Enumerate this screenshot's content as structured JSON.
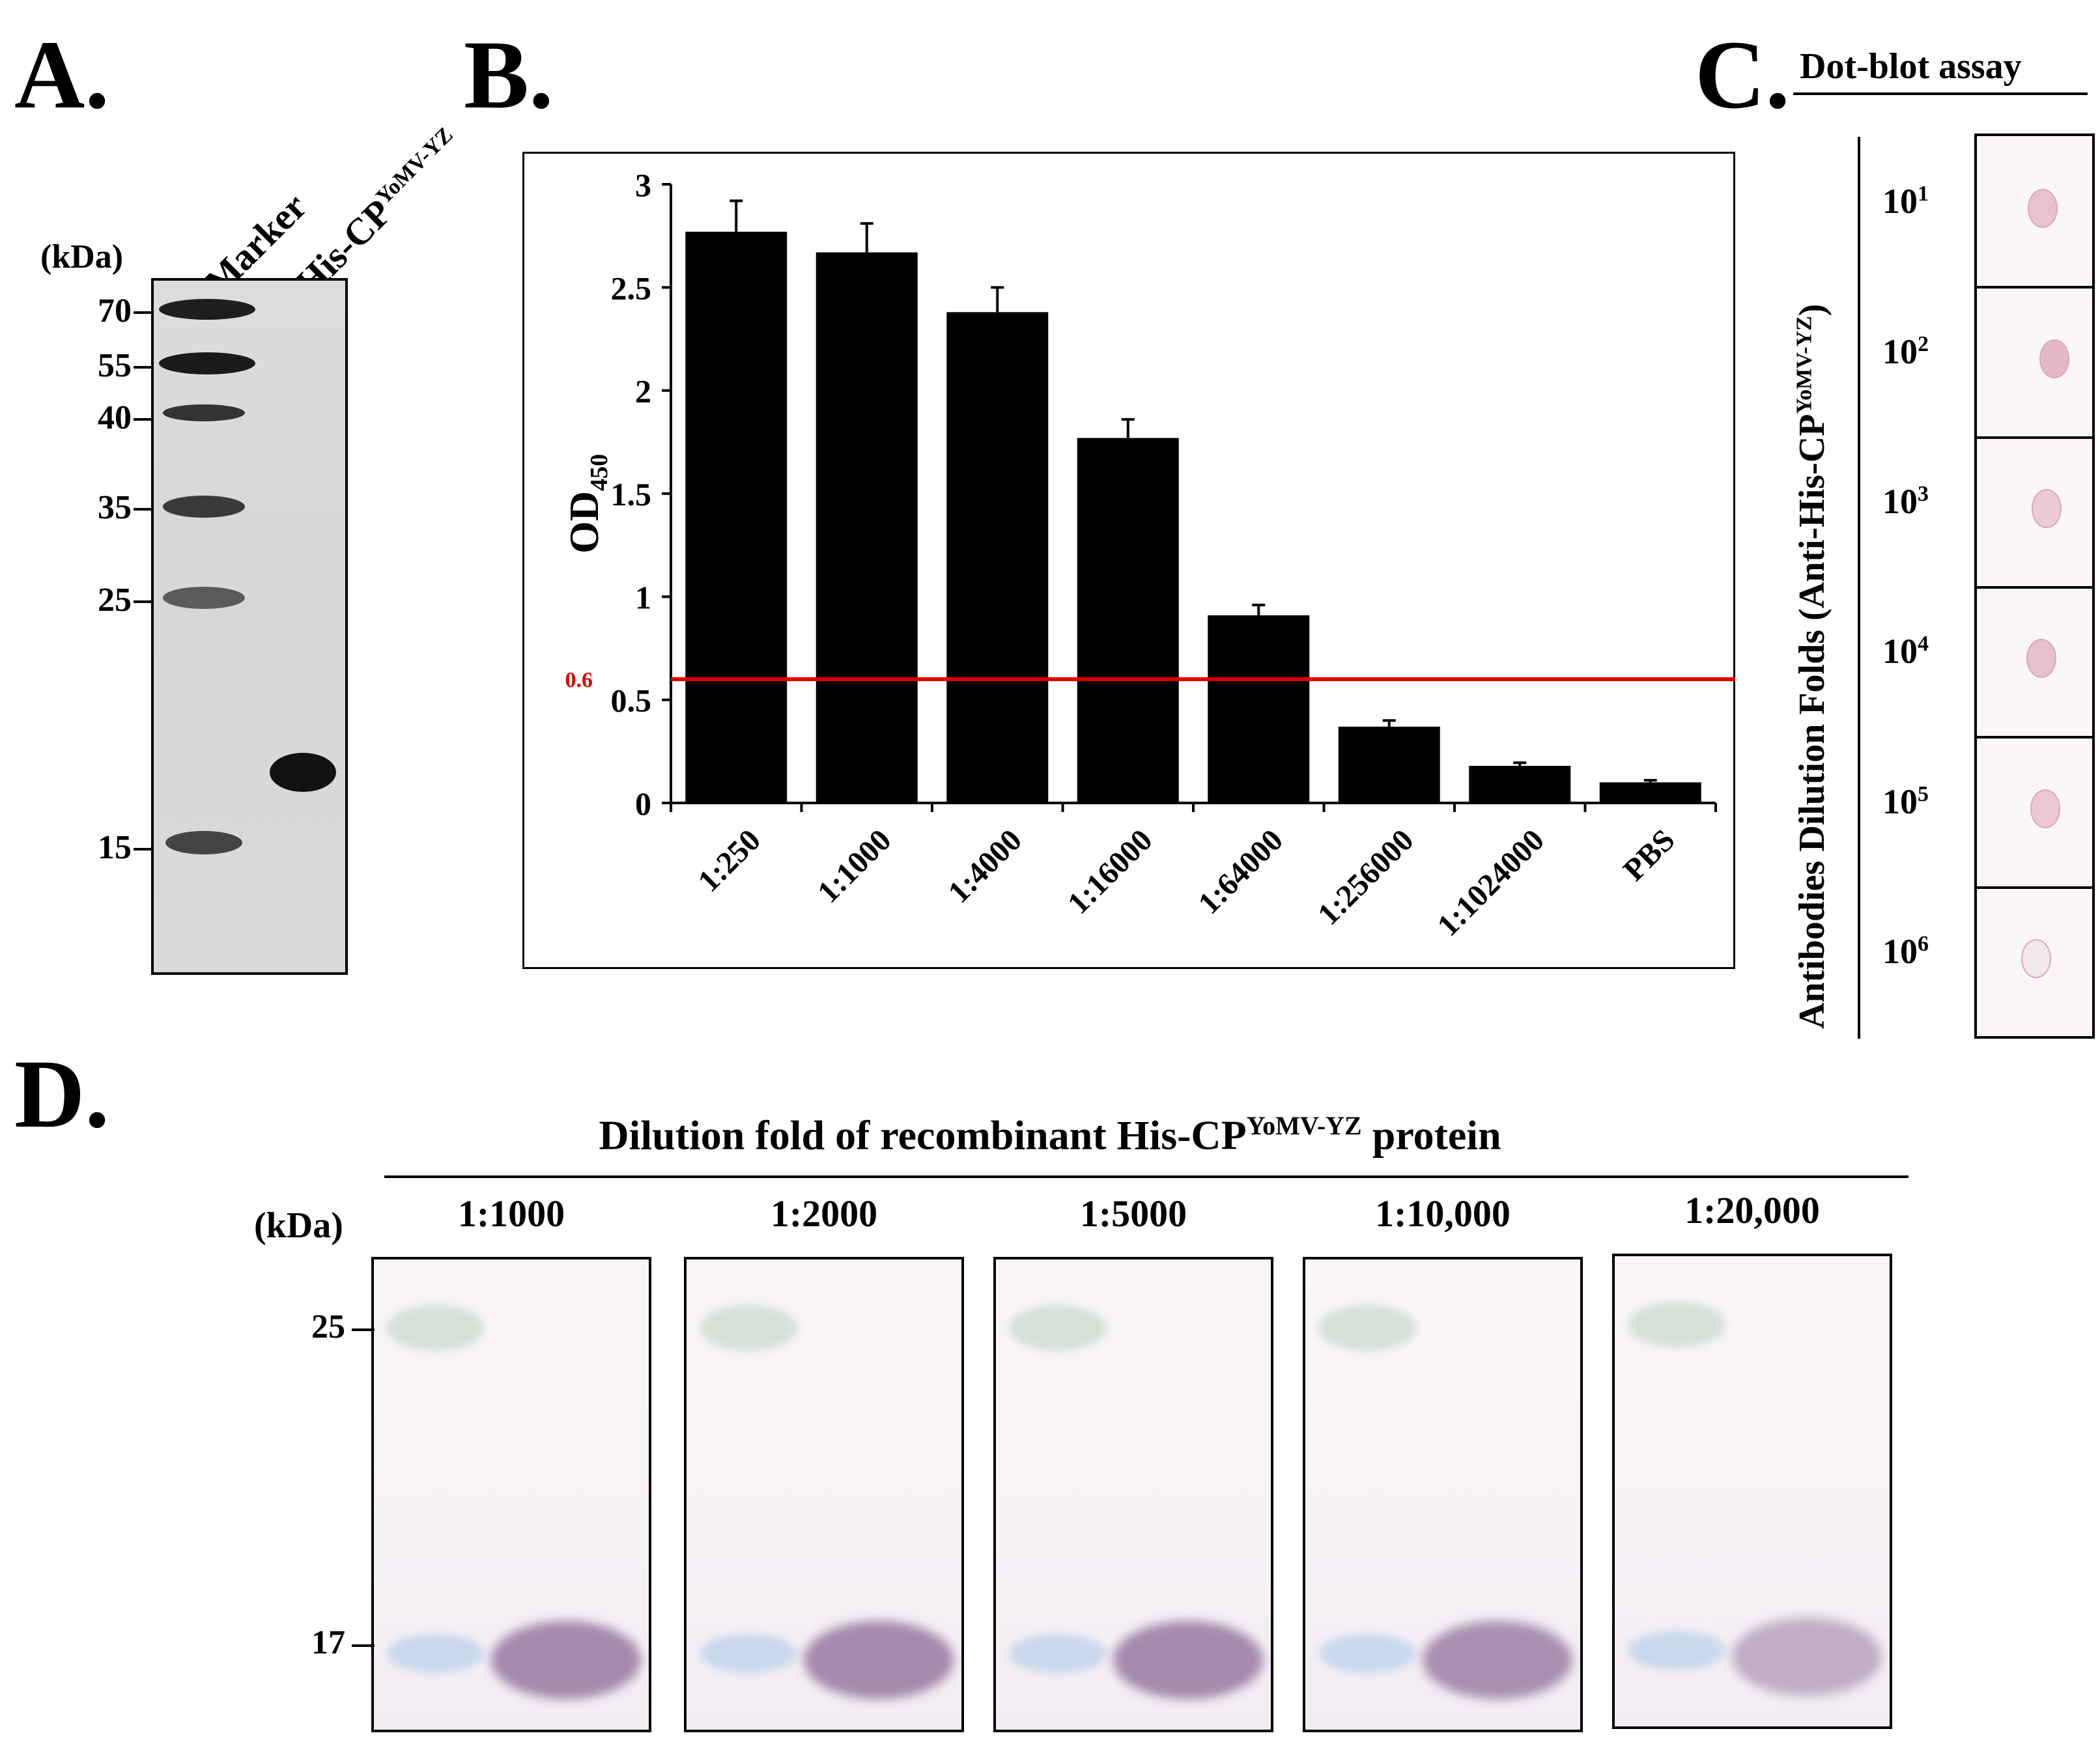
{
  "panel_a": {
    "letter": "A.",
    "kda_label": "(kDa)",
    "lane1": "Marker",
    "lane2_main": "His-CP",
    "lane2_sup": "YoMV-YZ",
    "mw_markers": [
      "70",
      "55",
      "40",
      "35",
      "25",
      "15"
    ]
  },
  "panel_b": {
    "letter": "B.",
    "threshold_label": "0.6",
    "threshold_color": "#e00000",
    "chart_data": {
      "type": "bar",
      "ylabel_main": "OD",
      "ylabel_sub": "450",
      "xlabel": "",
      "ylim": [
        0,
        3
      ],
      "yticks": [
        "0",
        "0.5",
        "1",
        "1.5",
        "2",
        "2.5",
        "3"
      ],
      "categories": [
        "1:250",
        "1:1000",
        "1:4000",
        "1:16000",
        "1:64000",
        "1:256000",
        "1:1024000",
        "PBS"
      ],
      "values": [
        2.77,
        2.67,
        2.38,
        1.77,
        0.91,
        0.37,
        0.18,
        0.1
      ],
      "errors": [
        0.15,
        0.14,
        0.12,
        0.09,
        0.05,
        0.03,
        0.015,
        0.01
      ],
      "threshold": 0.6,
      "bar_color": "#000000"
    }
  },
  "panel_c": {
    "letter": "C.",
    "title": "Dot-blot assay",
    "axis_label_main": "Antibodies Dilution Folds (Anti-His-CP",
    "axis_label_sup": "YoMV-YZ",
    "axis_label_end": ")",
    "dilutions": [
      {
        "base": "10",
        "exp": "1"
      },
      {
        "base": "10",
        "exp": "2"
      },
      {
        "base": "10",
        "exp": "3"
      },
      {
        "base": "10",
        "exp": "4"
      },
      {
        "base": "10",
        "exp": "5"
      },
      {
        "base": "10",
        "exp": "6"
      }
    ]
  },
  "panel_d": {
    "letter": "D.",
    "title_main": "Dilution fold of recombinant His-CP",
    "title_sup": "YoMV-YZ",
    "title_end": " protein",
    "kda_label": "(kDa)",
    "mw_markers": [
      "25",
      "17"
    ],
    "blots": [
      "1:1000",
      "1:2000",
      "1:5000",
      "1:10,000",
      "1:20,000"
    ]
  }
}
